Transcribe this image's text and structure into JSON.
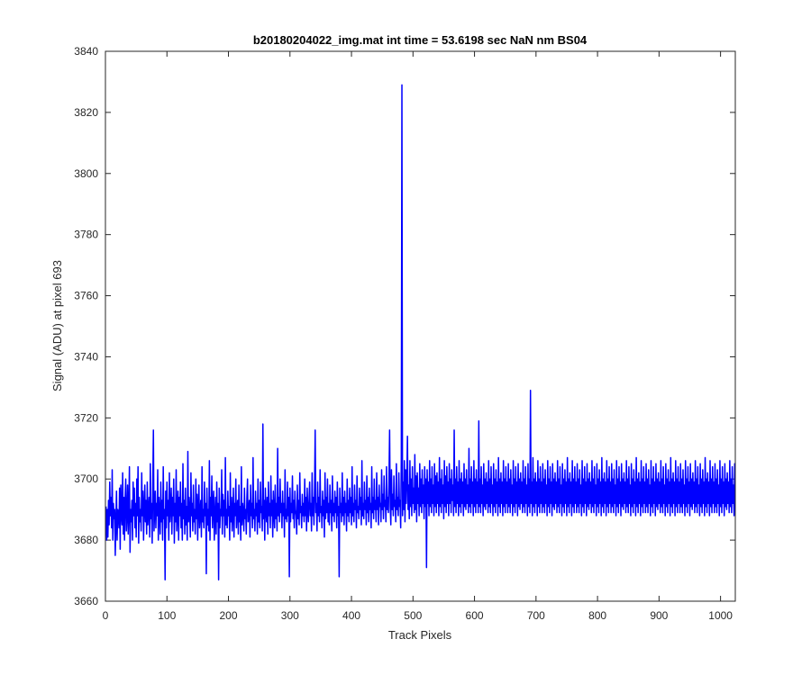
{
  "chart_data": {
    "type": "line",
    "title": "b20180204022_img.mat int time = 53.6198 sec  NaN nm BS04",
    "xlabel": "Track Pixels",
    "ylabel": "Signal (ADU) at pixel 693",
    "xlim": [
      0,
      1024
    ],
    "ylim": [
      3660,
      3840
    ],
    "xticks": [
      "0",
      "100",
      "200",
      "300",
      "400",
      "500",
      "600",
      "700",
      "800",
      "900",
      "1000"
    ],
    "yticks": [
      "3660",
      "3680",
      "3700",
      "3720",
      "3740",
      "3760",
      "3780",
      "3800",
      "3820",
      "3840"
    ],
    "grid": false,
    "legend": "none",
    "line_color": "#0000ff",
    "series": [
      {
        "x_start": 1,
        "x_step": 1,
        "values": [
          3691,
          3680,
          3690,
          3681,
          3693,
          3685,
          3699,
          3688,
          3694,
          3684,
          3703,
          3680,
          3692,
          3687,
          3690,
          3675,
          3686,
          3696,
          3680,
          3690,
          3689,
          3684,
          3697,
          3677,
          3698,
          3689,
          3685,
          3702,
          3682,
          3694,
          3680,
          3693,
          3700,
          3683,
          3688,
          3698,
          3682,
          3691,
          3704,
          3676,
          3690,
          3686,
          3693,
          3680,
          3699,
          3688,
          3697,
          3684,
          3692,
          3681,
          3700,
          3688,
          3704,
          3679,
          3694,
          3686,
          3690,
          3683,
          3702,
          3688,
          3696,
          3680,
          3691,
          3698,
          3686,
          3693,
          3682,
          3699,
          3685,
          3690,
          3694,
          3681,
          3705,
          3687,
          3692,
          3679,
          3698,
          3716,
          3683,
          3690,
          3696,
          3684,
          3692,
          3688,
          3703,
          3680,
          3694,
          3689,
          3682,
          3699,
          3686,
          3693,
          3680,
          3704,
          3687,
          3690,
          3667,
          3696,
          3684,
          3699,
          3688,
          3693,
          3680,
          3702,
          3686,
          3691,
          3697,
          3682,
          3694,
          3688,
          3700,
          3679,
          3692,
          3686,
          3703,
          3683,
          3689,
          3696,
          3680,
          3694,
          3688,
          3699,
          3684,
          3692,
          3680,
          3705,
          3687,
          3693,
          3682,
          3697,
          3685,
          3691,
          3680,
          3709,
          3686,
          3694,
          3689,
          3681,
          3702,
          3688,
          3692,
          3683,
          3698,
          3686,
          3690,
          3682,
          3700,
          3687,
          3695,
          3680,
          3691,
          3698,
          3684,
          3689,
          3693,
          3681,
          3704,
          3686,
          3690,
          3684,
          3699,
          3688,
          3692,
          3669,
          3697,
          3685,
          3690,
          3683,
          3706,
          3680,
          3694,
          3688,
          3701,
          3684,
          3691,
          3696,
          3680,
          3688,
          3694,
          3682,
          3699,
          3686,
          3692,
          3667,
          3697,
          3684,
          3690,
          3688,
          3703,
          3682,
          3695,
          3688,
          3693,
          3681,
          3707,
          3685,
          3690,
          3684,
          3696,
          3688,
          3691,
          3680,
          3702,
          3686,
          3694,
          3683,
          3689,
          3697,
          3681,
          3692,
          3688,
          3700,
          3684,
          3690,
          3693,
          3682,
          3698,
          3686,
          3691,
          3680,
          3704,
          3685,
          3692,
          3689,
          3683,
          3697,
          3687,
          3690,
          3682,
          3694,
          3700,
          3686,
          3689,
          3693,
          3681,
          3698,
          3688,
          3692,
          3684,
          3707,
          3687,
          3690,
          3683,
          3696,
          3688,
          3692,
          3682,
          3700,
          3686,
          3693,
          3684,
          3699,
          3689,
          3691,
          3683,
          3718,
          3687,
          3693,
          3680,
          3697,
          3690,
          3686,
          3694,
          3682,
          3699,
          3688,
          3692,
          3684,
          3701,
          3688,
          3693,
          3681,
          3696,
          3689,
          3684,
          3698,
          3687,
          3692,
          3683,
          3710,
          3688,
          3694,
          3686,
          3700,
          3689,
          3692,
          3684,
          3696,
          3688,
          3692,
          3681,
          3703,
          3687,
          3690,
          3686,
          3699,
          3688,
          3694,
          3668,
          3697,
          3686,
          3692,
          3689,
          3701,
          3687,
          3693,
          3684,
          3696,
          3690,
          3688,
          3682,
          3698,
          3687,
          3693,
          3685,
          3702,
          3689,
          3691,
          3684,
          3695,
          3688,
          3692,
          3686,
          3700,
          3688,
          3694,
          3683,
          3697,
          3690,
          3686,
          3693,
          3699,
          3688,
          3692,
          3683,
          3702,
          3688,
          3694,
          3685,
          3697,
          3716,
          3689,
          3692,
          3683,
          3699,
          3688,
          3694,
          3686,
          3703,
          3689,
          3691,
          3684,
          3696,
          3688,
          3693,
          3681,
          3702,
          3687,
          3694,
          3689,
          3700,
          3686,
          3692,
          3685,
          3698,
          3689,
          3693,
          3683,
          3701,
          3688,
          3692,
          3686,
          3696,
          3689,
          3694,
          3684,
          3699,
          3688,
          3691,
          3668,
          3697,
          3689,
          3692,
          3686,
          3702,
          3688,
          3694,
          3685,
          3696,
          3689,
          3692,
          3683,
          3700,
          3688,
          3693,
          3686,
          3697,
          3689,
          3694,
          3685,
          3704,
          3688,
          3692,
          3686,
          3698,
          3690,
          3693,
          3684,
          3701,
          3689,
          3691,
          3687,
          3697,
          3690,
          3694,
          3685,
          3706,
          3688,
          3692,
          3687,
          3699,
          3690,
          3693,
          3685,
          3701,
          3689,
          3694,
          3686,
          3697,
          3690,
          3692,
          3684,
          3704,
          3689,
          3694,
          3687,
          3700,
          3690,
          3693,
          3686,
          3702,
          3690,
          3694,
          3685,
          3698,
          3691,
          3692,
          3686,
          3703,
          3690,
          3695,
          3687,
          3701,
          3691,
          3693,
          3686,
          3704,
          3690,
          3694,
          3689,
          3700,
          3716,
          3691,
          3685,
          3703,
          3690,
          3695,
          3688,
          3701,
          3691,
          3693,
          3686,
          3705,
          3690,
          3694,
          3688,
          3702,
          3691,
          3693,
          3684,
          3707,
          3829,
          3688,
          3699,
          3690,
          3706,
          3686,
          3703,
          3692,
          3700,
          3714,
          3690,
          3698,
          3687,
          3706,
          3691,
          3700,
          3688,
          3704,
          3692,
          3697,
          3689,
          3708,
          3690,
          3701,
          3686,
          3702,
          3692,
          3697,
          3688,
          3705,
          3691,
          3700,
          3689,
          3703,
          3692,
          3698,
          3687,
          3704,
          3691,
          3700,
          3671,
          3703,
          3692,
          3699,
          3688,
          3706,
          3691,
          3700,
          3689,
          3704,
          3692,
          3698,
          3688,
          3705,
          3691,
          3701,
          3689,
          3702,
          3692,
          3699,
          3688,
          3707,
          3691,
          3700,
          3689,
          3703,
          3692,
          3698,
          3687,
          3706,
          3691,
          3701,
          3689,
          3704,
          3692,
          3699,
          3688,
          3705,
          3692,
          3700,
          3689,
          3703,
          3693,
          3698,
          3688,
          3716,
          3691,
          3700,
          3689,
          3704,
          3692,
          3699,
          3688,
          3706,
          3691,
          3700,
          3689,
          3702,
          3692,
          3699,
          3688,
          3705,
          3691,
          3700,
          3690,
          3703,
          3692,
          3698,
          3689,
          3710,
          3691,
          3700,
          3689,
          3704,
          3692,
          3699,
          3688,
          3706,
          3691,
          3700,
          3689,
          3703,
          3692,
          3699,
          3689,
          3719,
          3691,
          3700,
          3689,
          3704,
          3692,
          3698,
          3688,
          3705,
          3691,
          3700,
          3690,
          3702,
          3692,
          3699,
          3689,
          3706,
          3691,
          3700,
          3689,
          3704,
          3692,
          3698,
          3688,
          3705,
          3691,
          3700,
          3689,
          3703,
          3692,
          3699,
          3688,
          3707,
          3691,
          3700,
          3689,
          3702,
          3692,
          3699,
          3688,
          3706,
          3691,
          3700,
          3689,
          3704,
          3692,
          3699,
          3689,
          3705,
          3691,
          3700,
          3689,
          3703,
          3692,
          3698,
          3688,
          3706,
          3691,
          3700,
          3689,
          3704,
          3692,
          3699,
          3688,
          3705,
          3691,
          3700,
          3690,
          3702,
          3692,
          3699,
          3689,
          3706,
          3691,
          3700,
          3689,
          3704,
          3692,
          3698,
          3688,
          3705,
          3691,
          3700,
          3689,
          3729,
          3692,
          3699,
          3688,
          3707,
          3691,
          3700,
          3689,
          3702,
          3692,
          3699,
          3688,
          3706,
          3691,
          3700,
          3689,
          3704,
          3692,
          3699,
          3689,
          3705,
          3691,
          3700,
          3689,
          3703,
          3692,
          3698,
          3688,
          3706,
          3691,
          3700,
          3689,
          3704,
          3692,
          3699,
          3688,
          3705,
          3691,
          3700,
          3690,
          3702,
          3692,
          3699,
          3689,
          3706,
          3691,
          3700,
          3689,
          3704,
          3692,
          3698,
          3688,
          3705,
          3691,
          3700,
          3689,
          3703,
          3692,
          3699,
          3688,
          3707,
          3691,
          3700,
          3689,
          3702,
          3692,
          3699,
          3688,
          3706,
          3691,
          3700,
          3689,
          3704,
          3692,
          3699,
          3689,
          3705,
          3691,
          3700,
          3689,
          3703,
          3692,
          3698,
          3688,
          3706,
          3691,
          3700,
          3689,
          3704,
          3692,
          3699,
          3688,
          3705,
          3691,
          3700,
          3690,
          3702,
          3692,
          3699,
          3689,
          3706,
          3691,
          3700,
          3689,
          3704,
          3692,
          3698,
          3688,
          3705,
          3691,
          3700,
          3689,
          3703,
          3692,
          3699,
          3688,
          3707,
          3691,
          3700,
          3689,
          3702,
          3692,
          3699,
          3688,
          3706,
          3691,
          3700,
          3689,
          3704,
          3692,
          3699,
          3689,
          3705,
          3691,
          3700,
          3689,
          3703,
          3692,
          3698,
          3688,
          3706,
          3691,
          3700,
          3689,
          3704,
          3692,
          3699,
          3688,
          3705,
          3691,
          3700,
          3690,
          3702,
          3692,
          3699,
          3689,
          3706,
          3691,
          3700,
          3689,
          3704,
          3692,
          3698,
          3688,
          3705,
          3691,
          3700,
          3689,
          3703,
          3692,
          3699,
          3688,
          3707,
          3691,
          3700,
          3689,
          3702,
          3692,
          3699,
          3688,
          3706,
          3691,
          3700,
          3689,
          3704,
          3692,
          3699,
          3689,
          3705,
          3691,
          3700,
          3689,
          3703,
          3692,
          3698,
          3688,
          3706,
          3691,
          3700,
          3689,
          3704,
          3692,
          3699,
          3688,
          3705,
          3691,
          3700,
          3690,
          3702,
          3692,
          3699,
          3689,
          3706,
          3691,
          3700,
          3689,
          3704,
          3692,
          3698,
          3688,
          3705,
          3691,
          3700,
          3689,
          3703,
          3692,
          3699,
          3688,
          3707,
          3691,
          3700,
          3689,
          3702,
          3692,
          3699,
          3688,
          3706,
          3691,
          3700,
          3689,
          3704,
          3692,
          3699,
          3689,
          3705,
          3691,
          3700,
          3689,
          3703,
          3692,
          3698,
          3688,
          3706,
          3691,
          3700,
          3689,
          3704,
          3692,
          3699,
          3688,
          3705,
          3691,
          3700,
          3690,
          3702,
          3692,
          3699,
          3689,
          3706,
          3691,
          3700,
          3689,
          3704,
          3692,
          3698,
          3688,
          3705,
          3691,
          3700,
          3689,
          3703,
          3692,
          3699,
          3688,
          3707,
          3691,
          3700,
          3689,
          3702,
          3692,
          3699,
          3688,
          3706,
          3691,
          3700,
          3689,
          3704,
          3692,
          3699,
          3689,
          3705,
          3691,
          3700,
          3689,
          3703,
          3692,
          3698,
          3688,
          3706,
          3691,
          3700,
          3689,
          3704,
          3692,
          3699,
          3688,
          3705,
          3691,
          3700,
          3690,
          3702,
          3692,
          3699,
          3689,
          3706,
          3691,
          3700,
          3689,
          3704,
          3692,
          3698,
          3688,
          3705,
          3691,
          3700,
          3689,
          3703,
          3692,
          3699,
          3688,
          3707,
          3691,
          3700,
          3689,
          3702,
          3692,
          3699,
          3688
        ]
      }
    ]
  }
}
